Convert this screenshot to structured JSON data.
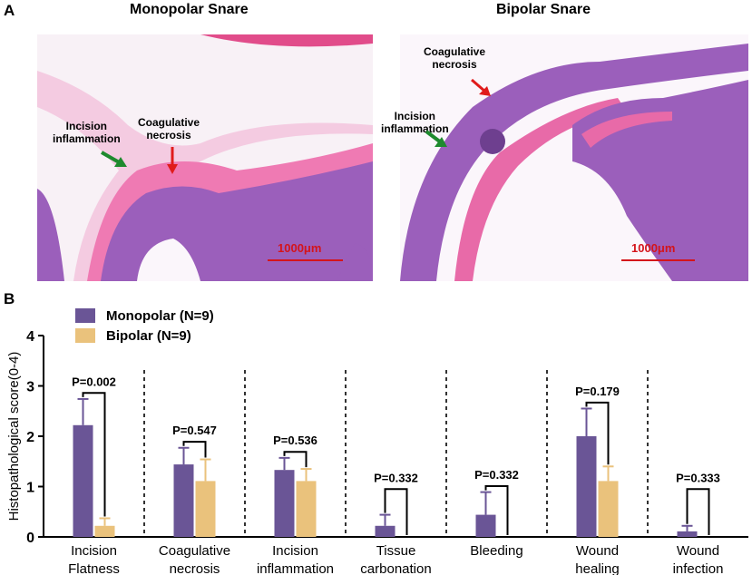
{
  "panel_a": {
    "letter": "A",
    "left_title": "Monopolar Snare",
    "right_title": "Bipolar Snare",
    "left_annotations": {
      "incision": "Incision\ninflammation",
      "necrosis": "Coagulative\nnecrosis"
    },
    "right_annotations": {
      "incision": "Incision\ninflammation",
      "necrosis": "Coagulative\nnecrosis"
    },
    "scale_bar_label": "1000μm",
    "colors": {
      "green_arrow": "#1e8a2e",
      "red_arrow": "#e01b1b",
      "tissue": "#9a5cb8",
      "stroma": "#e86aa8"
    }
  },
  "panel_b": {
    "letter": "B"
  },
  "chart_data": {
    "type": "bar",
    "ylabel": "Histopathological score(0-4)",
    "ylim": [
      0,
      4
    ],
    "yticks": [
      "0",
      "1",
      "2",
      "3",
      "4"
    ],
    "categories": [
      "Incision\nFlatness",
      "Coagulative\nnecrosis",
      "Incision\ninflammation",
      "Tissue\ncarbonation",
      "Bleeding",
      "Wound\nhealing",
      "Wound\ninfection"
    ],
    "series": [
      {
        "name": "Monopolar (N=9)",
        "color": "#6a5596",
        "values": [
          2.22,
          1.44,
          1.33,
          0.22,
          0.44,
          2.0,
          0.11
        ],
        "errors": [
          0.52,
          0.33,
          0.24,
          0.22,
          0.45,
          0.55,
          0.11
        ]
      },
      {
        "name": "Bipolar (N=9)",
        "color": "#eac27c",
        "values": [
          0.22,
          1.11,
          1.11,
          0.0,
          0.0,
          1.11,
          0.0
        ],
        "errors": [
          0.15,
          0.43,
          0.24,
          0.0,
          0.0,
          0.29,
          0.0
        ]
      }
    ],
    "p_values": [
      "P=0.002",
      "P=0.547",
      "P=0.536",
      "P=0.332",
      "P=0.332",
      "P=0.179",
      "P=0.333"
    ],
    "legend": "top-left",
    "separators": "dashed"
  }
}
